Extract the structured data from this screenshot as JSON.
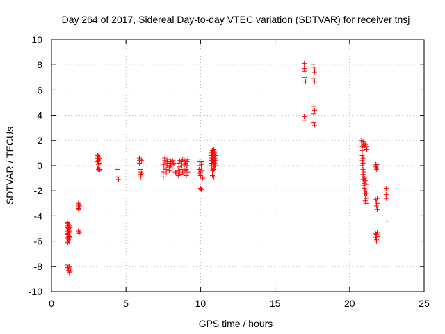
{
  "chart_data": {
    "type": "scatter",
    "title": "Day 264 of 2017, Sidereal Day-to-day VTEC variation (SDTVAR) for receiver tnsj",
    "xlabel": "GPS time / hours",
    "ylabel": "SDTVAR / TECUs",
    "xlim": [
      0,
      25
    ],
    "ylim": [
      -10,
      10
    ],
    "xticks": [
      0,
      5,
      10,
      15,
      20,
      25
    ],
    "yticks": [
      -10,
      -8,
      -6,
      -4,
      -2,
      0,
      2,
      4,
      6,
      8,
      10
    ],
    "grid": true,
    "marker": "plus",
    "color": "#ff0000",
    "series": [
      {
        "name": "SDTVAR",
        "points": [
          [
            1.05,
            -4.5
          ],
          [
            1.05,
            -4.8
          ],
          [
            1.05,
            -5.1
          ],
          [
            1.05,
            -5.4
          ],
          [
            1.05,
            -5.7
          ],
          [
            1.05,
            -6.0
          ],
          [
            1.05,
            -6.2
          ],
          [
            1.1,
            -4.6
          ],
          [
            1.1,
            -4.9
          ],
          [
            1.1,
            -5.2
          ],
          [
            1.1,
            -5.5
          ],
          [
            1.1,
            -5.8
          ],
          [
            1.1,
            -6.1
          ],
          [
            1.15,
            -4.7
          ],
          [
            1.15,
            -5.0
          ],
          [
            1.15,
            -5.3
          ],
          [
            1.15,
            -5.6
          ],
          [
            1.15,
            -5.9
          ],
          [
            1.2,
            -4.8
          ],
          [
            1.2,
            -5.2
          ],
          [
            1.2,
            -5.6
          ],
          [
            1.2,
            -6.0
          ],
          [
            1.25,
            -4.9
          ],
          [
            1.25,
            -5.3
          ],
          [
            1.25,
            -5.7
          ],
          [
            1.05,
            -7.9
          ],
          [
            1.1,
            -8.1
          ],
          [
            1.15,
            -8.3
          ],
          [
            1.2,
            -8.5
          ],
          [
            1.25,
            -8.4
          ],
          [
            1.3,
            -8.2
          ],
          [
            1.2,
            -8.0
          ],
          [
            1.8,
            -3.0
          ],
          [
            1.8,
            -3.2
          ],
          [
            1.8,
            -3.4
          ],
          [
            1.85,
            -3.1
          ],
          [
            1.85,
            -3.3
          ],
          [
            1.85,
            -3.5
          ],
          [
            1.9,
            -3.2
          ],
          [
            1.8,
            -5.2
          ],
          [
            1.85,
            -5.4
          ],
          [
            1.9,
            -5.3
          ],
          [
            3.1,
            0.8
          ],
          [
            3.1,
            0.6
          ],
          [
            3.1,
            0.3
          ],
          [
            3.15,
            0.7
          ],
          [
            3.15,
            0.4
          ],
          [
            3.15,
            0.1
          ],
          [
            3.2,
            0.5
          ],
          [
            3.2,
            0.2
          ],
          [
            3.25,
            0.6
          ],
          [
            3.1,
            -0.2
          ],
          [
            3.15,
            -0.3
          ],
          [
            3.2,
            -0.4
          ],
          [
            3.25,
            -0.3
          ],
          [
            4.45,
            -0.3
          ],
          [
            4.45,
            -0.9
          ],
          [
            4.5,
            -1.1
          ],
          [
            5.9,
            0.6
          ],
          [
            5.9,
            0.4
          ],
          [
            5.9,
            0.2
          ],
          [
            5.95,
            0.5
          ],
          [
            5.95,
            -0.3
          ],
          [
            5.95,
            -0.5
          ],
          [
            6.0,
            -0.7
          ],
          [
            6.0,
            -0.9
          ],
          [
            6.05,
            0.4
          ],
          [
            6.05,
            -0.6
          ],
          [
            7.5,
            -0.9
          ],
          [
            7.5,
            -0.5
          ],
          [
            7.55,
            -0.2
          ],
          [
            7.55,
            0.1
          ],
          [
            7.6,
            0.4
          ],
          [
            7.6,
            0.6
          ],
          [
            7.7,
            -0.6
          ],
          [
            7.7,
            -0.3
          ],
          [
            7.75,
            0.0
          ],
          [
            7.75,
            0.3
          ],
          [
            7.8,
            0.5
          ],
          [
            7.8,
            0.2
          ],
          [
            7.9,
            -0.4
          ],
          [
            7.9,
            -0.1
          ],
          [
            7.95,
            0.2
          ],
          [
            7.95,
            0.5
          ],
          [
            8.0,
            0.3
          ],
          [
            8.0,
            0.0
          ],
          [
            8.1,
            -0.2
          ],
          [
            8.1,
            0.1
          ],
          [
            8.15,
            0.4
          ],
          [
            8.2,
            0.2
          ],
          [
            8.3,
            -0.5
          ],
          [
            8.35,
            -0.6
          ],
          [
            8.5,
            -0.8
          ],
          [
            8.5,
            -0.4
          ],
          [
            8.55,
            -0.1
          ],
          [
            8.55,
            0.2
          ],
          [
            8.6,
            0.4
          ],
          [
            8.6,
            -0.6
          ],
          [
            8.7,
            -0.7
          ],
          [
            8.7,
            -0.3
          ],
          [
            8.75,
            0.0
          ],
          [
            8.75,
            0.3
          ],
          [
            8.8,
            0.5
          ],
          [
            8.8,
            -0.5
          ],
          [
            8.9,
            -0.6
          ],
          [
            8.9,
            -0.2
          ],
          [
            8.95,
            0.1
          ],
          [
            8.95,
            0.4
          ],
          [
            9.0,
            0.2
          ],
          [
            9.0,
            -0.4
          ],
          [
            9.05,
            -0.8
          ],
          [
            9.05,
            -0.3
          ],
          [
            9.1,
            0.0
          ],
          [
            9.1,
            0.3
          ],
          [
            9.15,
            0.5
          ],
          [
            9.15,
            -0.5
          ],
          [
            9.9,
            -0.6
          ],
          [
            9.9,
            -0.3
          ],
          [
            9.95,
            0.0
          ],
          [
            9.95,
            0.3
          ],
          [
            10.0,
            -0.8
          ],
          [
            10.0,
            -0.5
          ],
          [
            10.05,
            -0.2
          ],
          [
            10.05,
            0.1
          ],
          [
            10.1,
            0.3
          ],
          [
            10.1,
            -0.4
          ],
          [
            10.15,
            -1.0
          ],
          [
            10.0,
            -1.8
          ],
          [
            10.05,
            -1.9
          ],
          [
            10.7,
            0.8
          ],
          [
            10.7,
            0.4
          ],
          [
            10.7,
            0.0
          ],
          [
            10.75,
            1.0
          ],
          [
            10.75,
            0.6
          ],
          [
            10.75,
            0.2
          ],
          [
            10.75,
            -0.2
          ],
          [
            10.8,
            1.2
          ],
          [
            10.8,
            0.8
          ],
          [
            10.8,
            0.4
          ],
          [
            10.8,
            -0.4
          ],
          [
            10.8,
            -0.8
          ],
          [
            10.85,
            1.1
          ],
          [
            10.85,
            0.7
          ],
          [
            10.85,
            0.3
          ],
          [
            10.85,
            -0.1
          ],
          [
            10.9,
            1.3
          ],
          [
            10.9,
            0.9
          ],
          [
            10.9,
            0.5
          ],
          [
            10.9,
            0.1
          ],
          [
            10.9,
            -0.3
          ],
          [
            10.9,
            -0.9
          ],
          [
            10.95,
            1.0
          ],
          [
            10.95,
            0.6
          ],
          [
            10.95,
            0.2
          ],
          [
            10.95,
            -0.2
          ],
          [
            11.0,
            0.8
          ],
          [
            11.0,
            0.4
          ],
          [
            11.0,
            0.0
          ],
          [
            16.95,
            8.1
          ],
          [
            16.95,
            7.7
          ],
          [
            17.0,
            7.5
          ],
          [
            17.0,
            7.0
          ],
          [
            17.05,
            6.7
          ],
          [
            16.95,
            3.9
          ],
          [
            17.0,
            3.6
          ],
          [
            17.6,
            8.0
          ],
          [
            17.6,
            7.8
          ],
          [
            17.65,
            7.6
          ],
          [
            17.65,
            7.4
          ],
          [
            17.6,
            6.9
          ],
          [
            17.65,
            6.7
          ],
          [
            17.6,
            4.7
          ],
          [
            17.65,
            4.4
          ],
          [
            17.6,
            4.1
          ],
          [
            17.6,
            3.4
          ],
          [
            17.65,
            3.2
          ],
          [
            20.8,
            2.0
          ],
          [
            20.8,
            1.8
          ],
          [
            20.85,
            1.5
          ],
          [
            20.85,
            1.2
          ],
          [
            20.85,
            0.8
          ],
          [
            20.85,
            0.4
          ],
          [
            20.85,
            0.0
          ],
          [
            20.9,
            1.9
          ],
          [
            20.9,
            1.6
          ],
          [
            20.9,
            0.6
          ],
          [
            20.9,
            0.2
          ],
          [
            20.9,
            -0.3
          ],
          [
            20.9,
            -0.7
          ],
          [
            20.9,
            -1.1
          ],
          [
            20.95,
            1.8
          ],
          [
            20.95,
            -0.5
          ],
          [
            20.95,
            -0.9
          ],
          [
            20.95,
            -1.3
          ],
          [
            20.95,
            -1.6
          ],
          [
            21.0,
            1.6
          ],
          [
            21.0,
            -1.0
          ],
          [
            21.0,
            -1.4
          ],
          [
            21.0,
            -1.8
          ],
          [
            21.0,
            -2.2
          ],
          [
            21.05,
            1.7
          ],
          [
            21.05,
            -1.2
          ],
          [
            21.05,
            -2.0
          ],
          [
            21.05,
            -2.4
          ],
          [
            21.05,
            -2.8
          ],
          [
            21.1,
            1.5
          ],
          [
            21.1,
            -1.5
          ],
          [
            21.1,
            -2.6
          ],
          [
            21.1,
            -3.0
          ],
          [
            21.15,
            1.3
          ],
          [
            21.15,
            -2.2
          ],
          [
            21.75,
            0.1
          ],
          [
            21.75,
            -0.1
          ],
          [
            21.8,
            -0.3
          ],
          [
            21.8,
            0.0
          ],
          [
            21.85,
            -0.2
          ],
          [
            21.9,
            0.1
          ],
          [
            21.75,
            -2.7
          ],
          [
            21.8,
            -2.9
          ],
          [
            21.8,
            -3.2
          ],
          [
            21.85,
            -3.5
          ],
          [
            21.85,
            -2.6
          ],
          [
            21.9,
            -3.0
          ],
          [
            21.75,
            -5.4
          ],
          [
            21.75,
            -5.7
          ],
          [
            21.8,
            -5.9
          ],
          [
            21.8,
            -5.5
          ],
          [
            21.85,
            -5.3
          ],
          [
            21.9,
            -5.6
          ],
          [
            21.8,
            -6.0
          ],
          [
            22.45,
            -1.8
          ],
          [
            22.45,
            -2.3
          ],
          [
            22.45,
            -2.6
          ],
          [
            22.5,
            -4.4
          ]
        ]
      }
    ]
  }
}
